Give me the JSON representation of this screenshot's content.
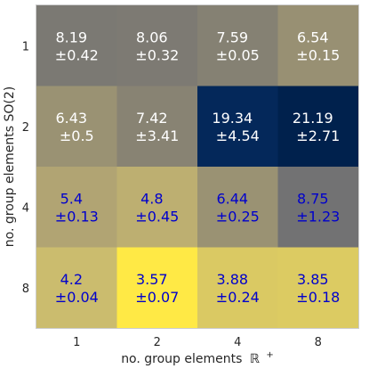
{
  "chart_data": {
    "type": "heatmap",
    "xlabel_prefix": "no. group elements",
    "xlabel_symbol": "ℝ",
    "xlabel_superscript": "+",
    "ylabel": "no. group elements SO(2)",
    "x_categories": [
      "1",
      "2",
      "4",
      "8"
    ],
    "y_categories": [
      "1",
      "2",
      "4",
      "8"
    ],
    "values": [
      [
        8.19,
        8.06,
        7.59,
        6.54
      ],
      [
        6.43,
        7.42,
        19.34,
        21.19
      ],
      [
        5.4,
        4.8,
        6.44,
        8.75
      ],
      [
        4.2,
        3.57,
        3.88,
        3.85
      ]
    ],
    "errors": [
      [
        0.42,
        0.32,
        0.05,
        0.15
      ],
      [
        0.5,
        3.41,
        4.54,
        2.71
      ],
      [
        0.13,
        0.45,
        0.25,
        1.23
      ],
      [
        0.04,
        0.07,
        0.24,
        0.18
      ]
    ],
    "colormap": "cividis",
    "grid": false,
    "colors": {
      "text_light": "#ffffff",
      "text_dark": "#0000cc",
      "tick_text": "#262626",
      "axis_line": "#cccccc"
    }
  }
}
